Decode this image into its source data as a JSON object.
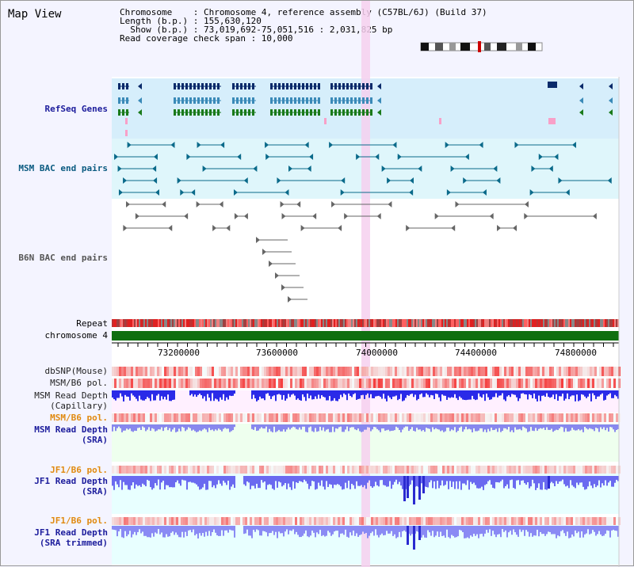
{
  "title": "Map View",
  "info": {
    "chromosome_label": "Chromosome",
    "chromosome_value": ": Chromosome 4, reference assembly (C57BL/6J) (Build 37)",
    "length_label": "Length (b.p.)",
    "length_value": ": 155,630,120",
    "show_label": "Show (b.p.)",
    "show_value": ": 73,019,692-75,051,516 : 2,031,825 bp",
    "read_coverage": "Read coverage check span : 10,000"
  },
  "tracks": {
    "refseq": "RefSeq Genes",
    "msm_bac": "MSM BAC end pairs",
    "b6n_bac": "B6N BAC end pairs",
    "repeat": "Repeat",
    "chromosome": "chromosome 4",
    "dbsnp": "dbSNP(Mouse)",
    "msm_b6_pol1": "MSM/B6 pol.",
    "msm_depth_cap_1": "MSM Read Depth",
    "msm_depth_cap_2": "(Capillary)",
    "msm_b6_pol2": "MSM/B6 pol.",
    "msm_depth_sra_1": "MSM Read Depth",
    "msm_depth_sra_2": "(SRA)",
    "jf1_b6_pol1": "JF1/B6 pol.",
    "jf1_depth_sra_1": "JF1 Read Depth",
    "jf1_depth_sra_2": "(SRA)",
    "jf1_b6_pol2": "JF1/B6 pol.",
    "jf1_depth_trim_1": "JF1 Read Depth",
    "jf1_depth_trim_2": "(SRA trimmed)"
  },
  "axis_ticks": [
    "73200000",
    "73600000",
    "74000000",
    "74400000",
    "74800000"
  ],
  "colors": {
    "refseq_bg": "#d6eefb",
    "msm_bg": "#dff6fb",
    "highlight": "#f6d0ee",
    "chromosome_bar": "#0f6f0f",
    "depth_blue": "#2a2ae0",
    "depth_light": "#8888f0"
  }
}
